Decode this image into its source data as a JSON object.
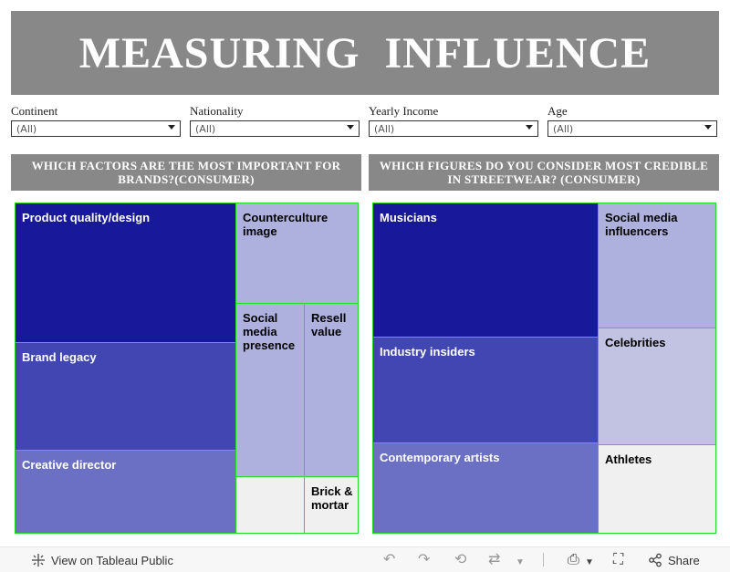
{
  "header": {
    "title": "MEASURING  INFLUENCE"
  },
  "filters": [
    {
      "label": "Continent",
      "value": "(All)"
    },
    {
      "label": "Nationality",
      "value": "(All)"
    },
    {
      "label": "Yearly  Income",
      "value": "(All)"
    },
    {
      "label": "Age",
      "value": "(All)"
    }
  ],
  "left_panel": {
    "heading": "WHICH FACTORS ARE THE MOST IMPORTANT FOR BRANDS?(CONSUMER)",
    "cells": {
      "product_quality": "Product quality/design",
      "brand_legacy": "Brand legacy",
      "creative_director": "Creative director",
      "counterculture": "Counterculture image",
      "social_media_presence": "Social media presence",
      "resell_value": "Resell value",
      "brick_mortar": "Brick & mortar"
    }
  },
  "right_panel": {
    "heading": "WHICH FIGURES DO YOU CONSIDER MOST CREDIBLE IN STREETWEAR? (CONSUMER)",
    "cells": {
      "musicians": "Musicians",
      "industry_insiders": "Industry insiders",
      "contemporary_artists": "Contemporary artists",
      "social_media_influencers": "Social media influencers",
      "celebrities": "Celebrities",
      "athletes": "Athletes"
    }
  },
  "footer": {
    "view_label": "View on Tableau Public",
    "share_label": "Share",
    "icons": [
      "tableau-logo-icon",
      "undo-icon",
      "redo-icon",
      "revert-icon",
      "refresh-icon",
      "dropdown-icon",
      "download-icon",
      "fullscreen-icon",
      "share-icon"
    ]
  },
  "colors": {
    "title_bg": "#888888",
    "tm_darkest": "#17189a",
    "tm_dark": "#4146b2",
    "tm_mid": "#6c70c5",
    "tm_light": "#aeb0de",
    "tm_lighter": "#c2c3e3",
    "tm_empty": "#f0f0f0",
    "tm_border": "#22dd22"
  }
}
